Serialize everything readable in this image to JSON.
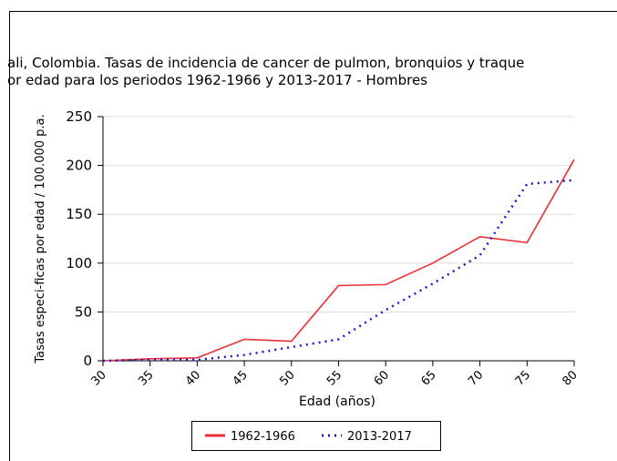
{
  "chart_data": {
    "type": "line",
    "title": "ali, Colombia. Tasas de incidencia de cancer de pulmon, bronquios y traque",
    "subtitle": "or edad para los periodos 1962-1966 y 2013-2017 - Hombres",
    "x_label": "Edad (años)",
    "y_label": "Tasas especi-ficas por edad / 100.000 p.a.",
    "x": [
      30,
      35,
      40,
      45,
      50,
      55,
      60,
      65,
      70,
      75,
      80
    ],
    "series": [
      {
        "name": "1962-1966",
        "color": "#e8303a",
        "style": "solid",
        "values": [
          0,
          2,
          3,
          22,
          20,
          77,
          78,
          100,
          127,
          121,
          206
        ]
      },
      {
        "name": "2013-2017",
        "color": "#1a1acc",
        "style": "dotted",
        "values": [
          0,
          1,
          1,
          6,
          14,
          22,
          52,
          79,
          108,
          181,
          185
        ]
      }
    ],
    "xlim": [
      30,
      80
    ],
    "xticks": [
      30,
      35,
      40,
      45,
      50,
      55,
      60,
      65,
      70,
      75,
      80
    ],
    "ylim": [
      0,
      250
    ],
    "yticks": [
      0,
      50,
      100,
      150,
      200,
      250
    ],
    "grid": true,
    "legend": "bottom"
  }
}
